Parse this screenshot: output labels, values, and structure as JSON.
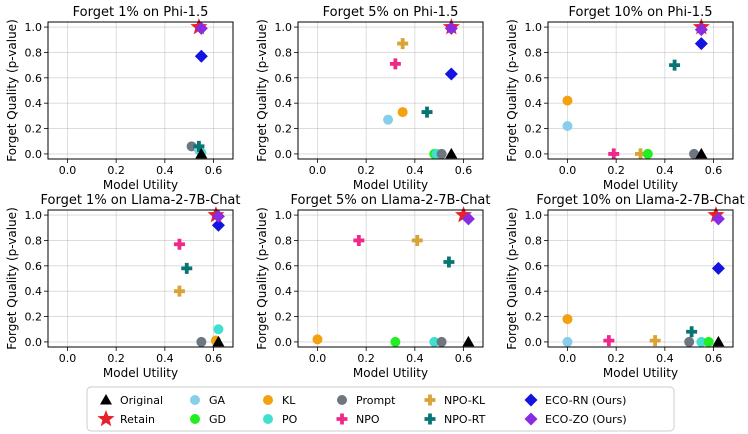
{
  "markers": {
    "Original": {
      "shape": "triangle",
      "color": "#000000"
    },
    "Retain": {
      "shape": "star",
      "color": "#e8202a"
    },
    "GA": {
      "shape": "circle",
      "color": "#87ceeb"
    },
    "GD": {
      "shape": "circle",
      "color": "#22ee22"
    },
    "KL": {
      "shape": "circle",
      "color": "#f5a00f"
    },
    "PO": {
      "shape": "circle",
      "color": "#40e0d0"
    },
    "Prompt": {
      "shape": "circle",
      "color": "#6e7780"
    },
    "NPO": {
      "shape": "plus",
      "color": "#f0288c"
    },
    "NPO-KL": {
      "shape": "plus",
      "color": "#d9a335"
    },
    "NPO-RT": {
      "shape": "plus",
      "color": "#087575"
    },
    "ECO-RN (Ours)": {
      "shape": "diamond",
      "color": "#1414e0"
    },
    "ECO-ZO (Ours)": {
      "shape": "diamond",
      "color": "#8a2be2"
    }
  },
  "legend": {
    "columns": [
      [
        "Original",
        "Retain"
      ],
      [
        "GA",
        "GD"
      ],
      [
        "KL",
        "PO"
      ],
      [
        "Prompt",
        "NPO"
      ],
      [
        "NPO-KL",
        "NPO-RT"
      ],
      [
        "ECO-RN (Ours)",
        "ECO-ZO (Ours)"
      ]
    ]
  },
  "chart_data": [
    {
      "type": "scatter",
      "title": "Forget 1% on Phi-1.5",
      "xlabel": "Model Utility",
      "ylabel": "Forget Quality (p-value)",
      "xlim": [
        -0.08,
        0.68
      ],
      "ylim": [
        -0.04,
        1.04
      ],
      "xticks": [
        "0.0",
        "0.2",
        "0.4",
        "0.6"
      ],
      "yticks": [
        "0.0",
        "0.2",
        "0.4",
        "0.6",
        "0.8",
        "1.0"
      ],
      "grid": true,
      "points": [
        {
          "method": "Prompt",
          "x": 0.51,
          "y": 0.06
        },
        {
          "method": "GA",
          "x": 0.54,
          "y": 0.03
        },
        {
          "method": "PO",
          "x": 0.55,
          "y": 0.01
        },
        {
          "method": "NPO-RT",
          "x": 0.54,
          "y": 0.06
        },
        {
          "method": "Original",
          "x": 0.55,
          "y": 0.0
        },
        {
          "method": "ECO-RN (Ours)",
          "x": 0.55,
          "y": 0.77
        },
        {
          "method": "Retain",
          "x": 0.54,
          "y": 1.0
        },
        {
          "method": "ECO-ZO (Ours)",
          "x": 0.55,
          "y": 0.99
        }
      ]
    },
    {
      "type": "scatter",
      "title": "Forget 5% on Phi-1.5",
      "xlabel": "Model Utility",
      "ylabel": "Forget Quality (p-value)",
      "xlim": [
        -0.08,
        0.68
      ],
      "ylim": [
        -0.04,
        1.04
      ],
      "xticks": [
        "0.0",
        "0.2",
        "0.4",
        "0.6"
      ],
      "yticks": [
        "0.0",
        "0.2",
        "0.4",
        "0.6",
        "0.8",
        "1.0"
      ],
      "grid": true,
      "points": [
        {
          "method": "GA",
          "x": 0.29,
          "y": 0.27
        },
        {
          "method": "KL",
          "x": 0.35,
          "y": 0.33
        },
        {
          "method": "NPO",
          "x": 0.32,
          "y": 0.71
        },
        {
          "method": "NPO-KL",
          "x": 0.35,
          "y": 0.87
        },
        {
          "method": "NPO-RT",
          "x": 0.45,
          "y": 0.33
        },
        {
          "method": "GD",
          "x": 0.48,
          "y": 0.0
        },
        {
          "method": "PO",
          "x": 0.49,
          "y": 0.0
        },
        {
          "method": "Prompt",
          "x": 0.51,
          "y": 0.0
        },
        {
          "method": "Original",
          "x": 0.55,
          "y": 0.0
        },
        {
          "method": "ECO-RN (Ours)",
          "x": 0.55,
          "y": 0.63
        },
        {
          "method": "Retain",
          "x": 0.55,
          "y": 1.0
        },
        {
          "method": "ECO-ZO (Ours)",
          "x": 0.55,
          "y": 0.99
        }
      ]
    },
    {
      "type": "scatter",
      "title": "Forget 10% on Phi-1.5",
      "xlabel": "Model Utility",
      "ylabel": "Forget Quality (p-value)",
      "xlim": [
        -0.08,
        0.68
      ],
      "ylim": [
        -0.04,
        1.04
      ],
      "xticks": [
        "0.0",
        "0.2",
        "0.4",
        "0.6"
      ],
      "yticks": [
        "0.0",
        "0.2",
        "0.4",
        "0.6",
        "0.8",
        "1.0"
      ],
      "grid": true,
      "points": [
        {
          "method": "KL",
          "x": 0.0,
          "y": 0.42
        },
        {
          "method": "GA",
          "x": 0.0,
          "y": 0.22
        },
        {
          "method": "NPO",
          "x": 0.19,
          "y": 0.0
        },
        {
          "method": "NPO-KL",
          "x": 0.3,
          "y": 0.0
        },
        {
          "method": "GD",
          "x": 0.33,
          "y": 0.0
        },
        {
          "method": "NPO-RT",
          "x": 0.44,
          "y": 0.7
        },
        {
          "method": "Prompt",
          "x": 0.52,
          "y": 0.0
        },
        {
          "method": "Original",
          "x": 0.55,
          "y": 0.0
        },
        {
          "method": "ECO-RN (Ours)",
          "x": 0.55,
          "y": 0.87
        },
        {
          "method": "Retain",
          "x": 0.55,
          "y": 1.0
        },
        {
          "method": "ECO-ZO (Ours)",
          "x": 0.55,
          "y": 0.98
        }
      ]
    },
    {
      "type": "scatter",
      "title": "Forget 1% on Llama-2-7B-Chat",
      "xlabel": "Model Utility",
      "ylabel": "Forget Quality (p-value)",
      "xlim": [
        -0.08,
        0.68
      ],
      "ylim": [
        -0.04,
        1.04
      ],
      "xticks": [
        "0.0",
        "0.2",
        "0.4",
        "0.6"
      ],
      "yticks": [
        "0.0",
        "0.2",
        "0.4",
        "0.6",
        "0.8",
        "1.0"
      ],
      "grid": true,
      "points": [
        {
          "method": "NPO",
          "x": 0.46,
          "y": 0.77
        },
        {
          "method": "NPO-RT",
          "x": 0.49,
          "y": 0.58
        },
        {
          "method": "NPO-KL",
          "x": 0.46,
          "y": 0.4
        },
        {
          "method": "Prompt",
          "x": 0.55,
          "y": 0.0
        },
        {
          "method": "GD",
          "x": 0.61,
          "y": 0.01
        },
        {
          "method": "KL",
          "x": 0.61,
          "y": 0.01
        },
        {
          "method": "PO",
          "x": 0.62,
          "y": 0.1
        },
        {
          "method": "Original",
          "x": 0.62,
          "y": 0.0
        },
        {
          "method": "ECO-RN (Ours)",
          "x": 0.62,
          "y": 0.92
        },
        {
          "method": "Retain",
          "x": 0.61,
          "y": 1.0
        },
        {
          "method": "ECO-ZO (Ours)",
          "x": 0.62,
          "y": 0.99
        }
      ]
    },
    {
      "type": "scatter",
      "title": "Forget 5% on Llama-2-7B-Chat",
      "xlabel": "Model Utility",
      "ylabel": "Forget Quality (p-value)",
      "xlim": [
        -0.08,
        0.68
      ],
      "ylim": [
        -0.04,
        1.04
      ],
      "xticks": [
        "0.0",
        "0.2",
        "0.4",
        "0.6"
      ],
      "yticks": [
        "0.0",
        "0.2",
        "0.4",
        "0.6",
        "0.8",
        "1.0"
      ],
      "grid": true,
      "points": [
        {
          "method": "KL",
          "x": 0.0,
          "y": 0.02
        },
        {
          "method": "NPO",
          "x": 0.17,
          "y": 0.8
        },
        {
          "method": "GD",
          "x": 0.32,
          "y": 0.0
        },
        {
          "method": "NPO-KL",
          "x": 0.41,
          "y": 0.8
        },
        {
          "method": "PO",
          "x": 0.48,
          "y": 0.0
        },
        {
          "method": "Prompt",
          "x": 0.51,
          "y": 0.0
        },
        {
          "method": "NPO-RT",
          "x": 0.54,
          "y": 0.63
        },
        {
          "method": "Original",
          "x": 0.62,
          "y": 0.0
        },
        {
          "method": "Retain",
          "x": 0.6,
          "y": 1.0
        },
        {
          "method": "ECO-ZO (Ours)",
          "x": 0.62,
          "y": 0.97
        }
      ]
    },
    {
      "type": "scatter",
      "title": "Forget 10% on Llama-2-7B-Chat",
      "xlabel": "Model Utility",
      "ylabel": "Forget Quality (p-value)",
      "xlim": [
        -0.08,
        0.68
      ],
      "ylim": [
        -0.04,
        1.04
      ],
      "xticks": [
        "0.0",
        "0.2",
        "0.4",
        "0.6"
      ],
      "yticks": [
        "0.0",
        "0.2",
        "0.4",
        "0.6",
        "0.8",
        "1.0"
      ],
      "grid": true,
      "points": [
        {
          "method": "KL",
          "x": 0.0,
          "y": 0.18
        },
        {
          "method": "GA",
          "x": 0.0,
          "y": 0.0
        },
        {
          "method": "NPO",
          "x": 0.17,
          "y": 0.01
        },
        {
          "method": "NPO-KL",
          "x": 0.36,
          "y": 0.01
        },
        {
          "method": "Prompt",
          "x": 0.5,
          "y": 0.0
        },
        {
          "method": "NPO-RT",
          "x": 0.51,
          "y": 0.08
        },
        {
          "method": "PO",
          "x": 0.55,
          "y": 0.0
        },
        {
          "method": "GD",
          "x": 0.58,
          "y": 0.0
        },
        {
          "method": "Original",
          "x": 0.62,
          "y": 0.0
        },
        {
          "method": "ECO-RN (Ours)",
          "x": 0.62,
          "y": 0.58
        },
        {
          "method": "Retain",
          "x": 0.61,
          "y": 1.0
        },
        {
          "method": "ECO-ZO (Ours)",
          "x": 0.62,
          "y": 0.97
        }
      ]
    }
  ]
}
